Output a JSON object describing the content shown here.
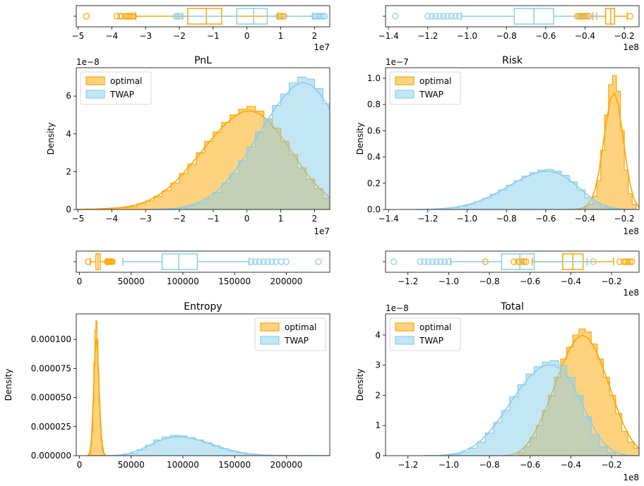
{
  "colors": {
    "optimal": "#ffa500",
    "twap": "#87ceeb"
  },
  "chart_data": [
    {
      "type": "box",
      "panel": "pnl-box",
      "xlim": [
        -5.05,
        2.45
      ],
      "xticks": [
        -5,
        -4,
        -3,
        -2,
        -1,
        0,
        1,
        2
      ],
      "xtick_labels": [
        "−5",
        "−4",
        "−3",
        "−2",
        "−1",
        "0",
        "1",
        "2"
      ],
      "offset_label": "1e7",
      "series": [
        {
          "key": "optimal",
          "q1": -1.75,
          "median": -1.2,
          "q3": -0.75,
          "whisker_low": -3.3,
          "whisker_high": 0.9,
          "outliers": [
            -4.75,
            -3.85,
            -3.75,
            -3.7,
            -3.6,
            -3.55,
            -3.5,
            -3.45,
            -3.4,
            -3.35,
            0.95,
            1.0,
            1.05,
            1.1
          ]
        },
        {
          "key": "twap",
          "q1": -0.3,
          "median": 0.2,
          "q3": 0.6,
          "whisker_low": -1.9,
          "whisker_high": 1.95,
          "outliers": [
            -2.1,
            -2.05,
            -2.0,
            2.0,
            2.05,
            2.1,
            2.15,
            2.2,
            2.25,
            2.3
          ]
        }
      ]
    },
    {
      "type": "histogram",
      "panel": "pnl-hist",
      "title": "PnL",
      "xlabel": "",
      "ylabel": "Density",
      "xlim": [
        -5.05,
        2.45
      ],
      "ylim": [
        0,
        7.5
      ],
      "xticks": [
        -5,
        -4,
        -3,
        -2,
        -1,
        0,
        1,
        2
      ],
      "xtick_labels": [
        "−5",
        "−4",
        "−3",
        "−2",
        "−1",
        "0",
        "1",
        "2"
      ],
      "yticks": [
        0,
        2,
        4,
        6
      ],
      "ytick_labels": [
        "0",
        "2",
        "4",
        "6"
      ],
      "x_offset_label": "1e7",
      "y_offset_label": "1e−8",
      "legend": "upper left",
      "series": [
        {
          "name": "optimal",
          "key": "optimal",
          "bin_start": -4.75,
          "bin_width": 0.25,
          "values": [
            0.02,
            0.02,
            0.05,
            0.08,
            0.1,
            0.15,
            0.3,
            0.45,
            0.7,
            1.0,
            1.4,
            1.9,
            2.4,
            3.0,
            3.6,
            4.1,
            4.6,
            5.0,
            5.3,
            5.45,
            5.2,
            4.8,
            4.3,
            3.6,
            2.9,
            2.2,
            1.6,
            1.1,
            0.6,
            0.35,
            0.2,
            0.1,
            0.05,
            0.03
          ]
        },
        {
          "name": "TWAP",
          "key": "twap",
          "bin_start": -2.25,
          "bin_width": 0.25,
          "values": [
            0.05,
            0.1,
            0.2,
            0.35,
            0.6,
            0.9,
            1.4,
            1.9,
            2.6,
            3.3,
            4.1,
            4.8,
            5.5,
            6.1,
            6.7,
            7.0,
            6.9,
            6.4,
            5.6,
            4.8,
            3.9,
            2.9,
            2.1,
            1.4,
            0.8,
            0.45,
            0.2,
            0.08,
            0.04
          ]
        }
      ]
    },
    {
      "type": "box",
      "panel": "risk-box",
      "xlim": [
        -1.415,
        -0.125
      ],
      "xticks": [
        -1.4,
        -1.2,
        -1.0,
        -0.8,
        -0.6,
        -0.4,
        -0.2
      ],
      "xtick_labels": [
        "−1.4",
        "−1.2",
        "−1.0",
        "−0.8",
        "−0.6",
        "−0.4",
        "−0.2"
      ],
      "offset_label": "1e8",
      "series": [
        {
          "key": "optimal",
          "q1": -0.295,
          "median": -0.27,
          "q3": -0.25,
          "whisker_low": -0.36,
          "whisker_high": -0.185,
          "outliers": [
            -0.44,
            -0.43,
            -0.42,
            -0.41,
            -0.4,
            -0.39,
            -0.38,
            -0.17
          ]
        },
        {
          "key": "twap",
          "q1": -0.76,
          "median": -0.66,
          "q3": -0.56,
          "whisker_low": -1.03,
          "whisker_high": -0.34,
          "outliers": [
            -1.365,
            -1.2,
            -1.18,
            -1.16,
            -1.14,
            -1.12,
            -1.1,
            -1.08,
            -1.06,
            -1.04
          ]
        }
      ]
    },
    {
      "type": "histogram",
      "panel": "risk-hist",
      "title": "Risk",
      "xlabel": "",
      "ylabel": "Density",
      "xlim": [
        -1.415,
        -0.125
      ],
      "ylim": [
        0,
        1.08
      ],
      "xticks": [
        -1.4,
        -1.2,
        -1.0,
        -0.8,
        -0.6,
        -0.4,
        -0.2
      ],
      "xtick_labels": [
        "−1.4",
        "−1.2",
        "−1.0",
        "−0.8",
        "−0.6",
        "−0.4",
        "−0.2"
      ],
      "yticks": [
        0,
        0.2,
        0.4,
        0.6,
        0.8,
        1.0
      ],
      "ytick_labels": [
        "0.0",
        "0.2",
        "0.4",
        "0.6",
        "0.8",
        "1.0"
      ],
      "x_offset_label": "1e8",
      "y_offset_label": "1e−7",
      "legend": "upper left",
      "series": [
        {
          "name": "optimal",
          "key": "optimal",
          "bin_start": -0.44,
          "bin_width": 0.02,
          "values": [
            0.005,
            0.01,
            0.02,
            0.04,
            0.1,
            0.22,
            0.45,
            0.72,
            0.95,
            1.02,
            0.9,
            0.6,
            0.3,
            0.12,
            0.04
          ]
        },
        {
          "name": "TWAP",
          "key": "twap",
          "bin_start": -1.16,
          "bin_width": 0.04,
          "values": [
            0.005,
            0.01,
            0.015,
            0.025,
            0.04,
            0.06,
            0.085,
            0.115,
            0.15,
            0.185,
            0.22,
            0.255,
            0.28,
            0.3,
            0.305,
            0.29,
            0.26,
            0.21,
            0.15,
            0.09,
            0.05,
            0.02,
            0.008
          ]
        }
      ]
    },
    {
      "type": "box",
      "panel": "entropy-box",
      "xlim": [
        -3000,
        242000
      ],
      "xticks": [
        0,
        50000,
        100000,
        150000,
        200000
      ],
      "xtick_labels": [
        "0",
        "50000",
        "100000",
        "150000",
        "200000"
      ],
      "offset_label": "",
      "series": [
        {
          "key": "optimal",
          "q1": 16000,
          "median": 18000,
          "q3": 20000,
          "whisker_low": 10500,
          "whisker_high": 26000,
          "outliers": [
            8500,
            27000,
            28000,
            29000,
            30000,
            31000,
            32000
          ]
        },
        {
          "key": "twap",
          "q1": 80000,
          "median": 96000,
          "q3": 114000,
          "whisker_low": 42000,
          "whisker_high": 164000,
          "outliers": [
            166000,
            170000,
            174000,
            178000,
            182000,
            186000,
            190000,
            195000,
            200000,
            231000
          ]
        }
      ]
    },
    {
      "type": "histogram",
      "panel": "entropy-hist",
      "title": "Entropy",
      "xlabel": "",
      "ylabel": "Density",
      "xlim": [
        -3000,
        242000
      ],
      "ylim": [
        0,
        0.000122
      ],
      "xticks": [
        0,
        50000,
        100000,
        150000,
        200000
      ],
      "xtick_labels": [
        "0",
        "50000",
        "100000",
        "150000",
        "200000"
      ],
      "yticks": [
        0,
        2.5e-05,
        5e-05,
        7.5e-05,
        0.0001
      ],
      "ytick_labels": [
        "0.000000",
        "0.000025",
        "0.000050",
        "0.000075",
        "0.000100"
      ],
      "x_offset_label": "",
      "y_offset_label": "",
      "legend": "upper right",
      "series": [
        {
          "name": "optimal",
          "key": "optimal",
          "bin_start": 10000,
          "bin_width": 1000,
          "values": [
            2e-06,
            8e-06,
            2e-05,
            4.5e-05,
            8e-05,
            0.000108,
            0.000116,
            0.0001,
            7.2e-05,
            4.5e-05,
            2.4e-05,
            1.2e-05,
            5e-06,
            2e-06
          ]
        },
        {
          "name": "TWAP",
          "key": "twap",
          "bin_start": 40000,
          "bin_width": 8000,
          "values": [
            5e-07,
            2e-06,
            5e-06,
            9e-06,
            1.35e-05,
            1.6e-05,
            1.75e-05,
            1.7e-05,
            1.55e-05,
            1.35e-05,
            1.1e-05,
            8.5e-06,
            6e-06,
            4e-06,
            2.5e-06,
            1.5e-06,
            8e-07,
            3e-07,
            2e-07,
            1e-07,
            1e-07,
            1e-07,
            1e-07,
            1e-07
          ]
        }
      ]
    },
    {
      "type": "box",
      "panel": "total-box",
      "xlim": [
        -1.31,
        -0.065
      ],
      "xticks": [
        -1.2,
        -1.0,
        -0.8,
        -0.6,
        -0.4,
        -0.2
      ],
      "xtick_labels": [
        "−1.2",
        "−1.0",
        "−0.8",
        "−0.6",
        "−0.4",
        "−0.2"
      ],
      "offset_label": "1e8",
      "series": [
        {
          "key": "optimal",
          "q1": -0.44,
          "median": -0.39,
          "q3": -0.34,
          "whisker_low": -0.59,
          "whisker_high": -0.19,
          "outliers": [
            -0.82,
            -0.68,
            -0.66,
            -0.65,
            -0.64,
            -0.63,
            -0.62,
            -0.16,
            -0.14,
            -0.13,
            -0.12,
            -0.11,
            -0.1
          ]
        },
        {
          "key": "twap",
          "q1": -0.74,
          "median": -0.65,
          "q3": -0.58,
          "whisker_low": -0.99,
          "whisker_high": -0.32,
          "outliers": [
            -1.27,
            -1.14,
            -1.12,
            -1.1,
            -1.08,
            -1.06,
            -1.04,
            -1.02,
            -1.0,
            -0.29
          ]
        }
      ]
    },
    {
      "type": "histogram",
      "panel": "total-hist",
      "title": "Total",
      "xlabel": "",
      "ylabel": "Density",
      "xlim": [
        -1.31,
        -0.065
      ],
      "ylim": [
        0,
        4.7
      ],
      "xticks": [
        -1.2,
        -1.0,
        -0.8,
        -0.6,
        -0.4,
        -0.2
      ],
      "xtick_labels": [
        "−1.2",
        "−1.0",
        "−0.8",
        "−0.6",
        "−0.4",
        "−0.2"
      ],
      "yticks": [
        0,
        1,
        2,
        3,
        4
      ],
      "ytick_labels": [
        "0",
        "1",
        "2",
        "3",
        "4"
      ],
      "x_offset_label": "1e8",
      "y_offset_label": "1e−8",
      "legend": "upper left",
      "series": [
        {
          "name": "optimal",
          "key": "optimal",
          "bin_start": -0.66,
          "bin_width": 0.03,
          "values": [
            0.1,
            0.3,
            0.6,
            1.0,
            1.5,
            2.0,
            2.6,
            3.2,
            3.6,
            4.0,
            4.2,
            4.1,
            3.7,
            3.2,
            2.6,
            2.0,
            1.4,
            0.8,
            0.45,
            0.25,
            0.1
          ]
        },
        {
          "name": "TWAP",
          "key": "twap",
          "bin_start": -1.02,
          "bin_width": 0.04,
          "values": [
            0.02,
            0.05,
            0.12,
            0.25,
            0.45,
            0.75,
            1.1,
            1.5,
            1.95,
            2.35,
            2.7,
            2.95,
            3.1,
            3.15,
            3.0,
            2.6,
            2.0,
            1.3,
            0.7,
            0.3,
            0.1
          ]
        }
      ]
    }
  ]
}
